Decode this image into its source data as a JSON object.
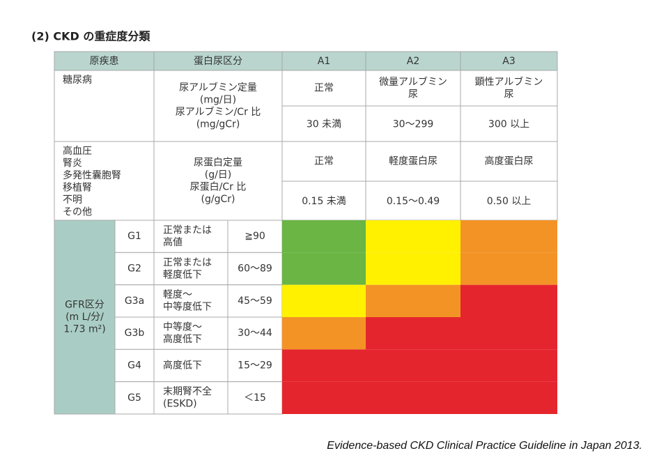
{
  "title": "(2) CKD の重症度分類",
  "header": [
    "原疾患",
    "蛋白尿区分",
    "A1",
    "A2",
    "A3"
  ],
  "diseases": [
    {
      "names": [
        "糖尿病"
      ],
      "measure": [
        "尿アルブミン定量",
        "(mg/日)",
        "尿アルブミン/Cr 比",
        "(mg/gCr)"
      ],
      "levels": [
        [
          "正常"
        ],
        [
          "微量アルブミン",
          "尿"
        ],
        [
          "顕性アルブミン",
          "尿"
        ]
      ],
      "ranges": [
        "30 未満",
        "30〜299",
        "300 以上"
      ]
    },
    {
      "names": [
        "高血圧",
        "腎炎",
        "多発性囊胞腎",
        "移植腎",
        "不明",
        "その他"
      ],
      "measure": [
        "尿蛋白定量",
        "(g/日)",
        "尿蛋白/Cr 比",
        "(g/gCr)"
      ],
      "levels": [
        [
          "正常"
        ],
        [
          "軽度蛋白尿"
        ],
        [
          "高度蛋白尿"
        ]
      ],
      "ranges": [
        "0.15 未満",
        "0.15〜0.49",
        "0.50 以上"
      ]
    }
  ],
  "gfr": {
    "label": [
      "GFR区分",
      "(m L/分/",
      "1.73 m²)"
    ],
    "stages": [
      {
        "stage": "G1",
        "desc": [
          "正常または",
          "高値"
        ],
        "range": "≧90",
        "risk": [
          "green",
          "yellow",
          "orange"
        ]
      },
      {
        "stage": "G2",
        "desc": [
          "正常または",
          "軽度低下"
        ],
        "range": "60〜89",
        "risk": [
          "green",
          "yellow",
          "orange"
        ]
      },
      {
        "stage": "G3a",
        "desc": [
          "軽度〜",
          "中等度低下"
        ],
        "range": "45〜59",
        "risk": [
          "yellow",
          "orange",
          "red"
        ]
      },
      {
        "stage": "G3b",
        "desc": [
          "中等度〜",
          "高度低下"
        ],
        "range": "30〜44",
        "risk": [
          "orange",
          "red",
          "red"
        ]
      },
      {
        "stage": "G4",
        "desc": [
          "高度低下"
        ],
        "range": "15〜29",
        "risk": [
          "red",
          "red",
          "red"
        ]
      },
      {
        "stage": "G5",
        "desc": [
          "末期腎不全",
          "(ESKD)"
        ],
        "range": "＜15",
        "risk": [
          "red",
          "red",
          "red"
        ]
      }
    ]
  },
  "risk_colors": {
    "green": "#6ab544",
    "yellow": "#fff100",
    "orange": "#f39325",
    "red": "#e5252d"
  },
  "source": "Evidence-based CKD Clinical Practice Guideline in Japan 2013."
}
